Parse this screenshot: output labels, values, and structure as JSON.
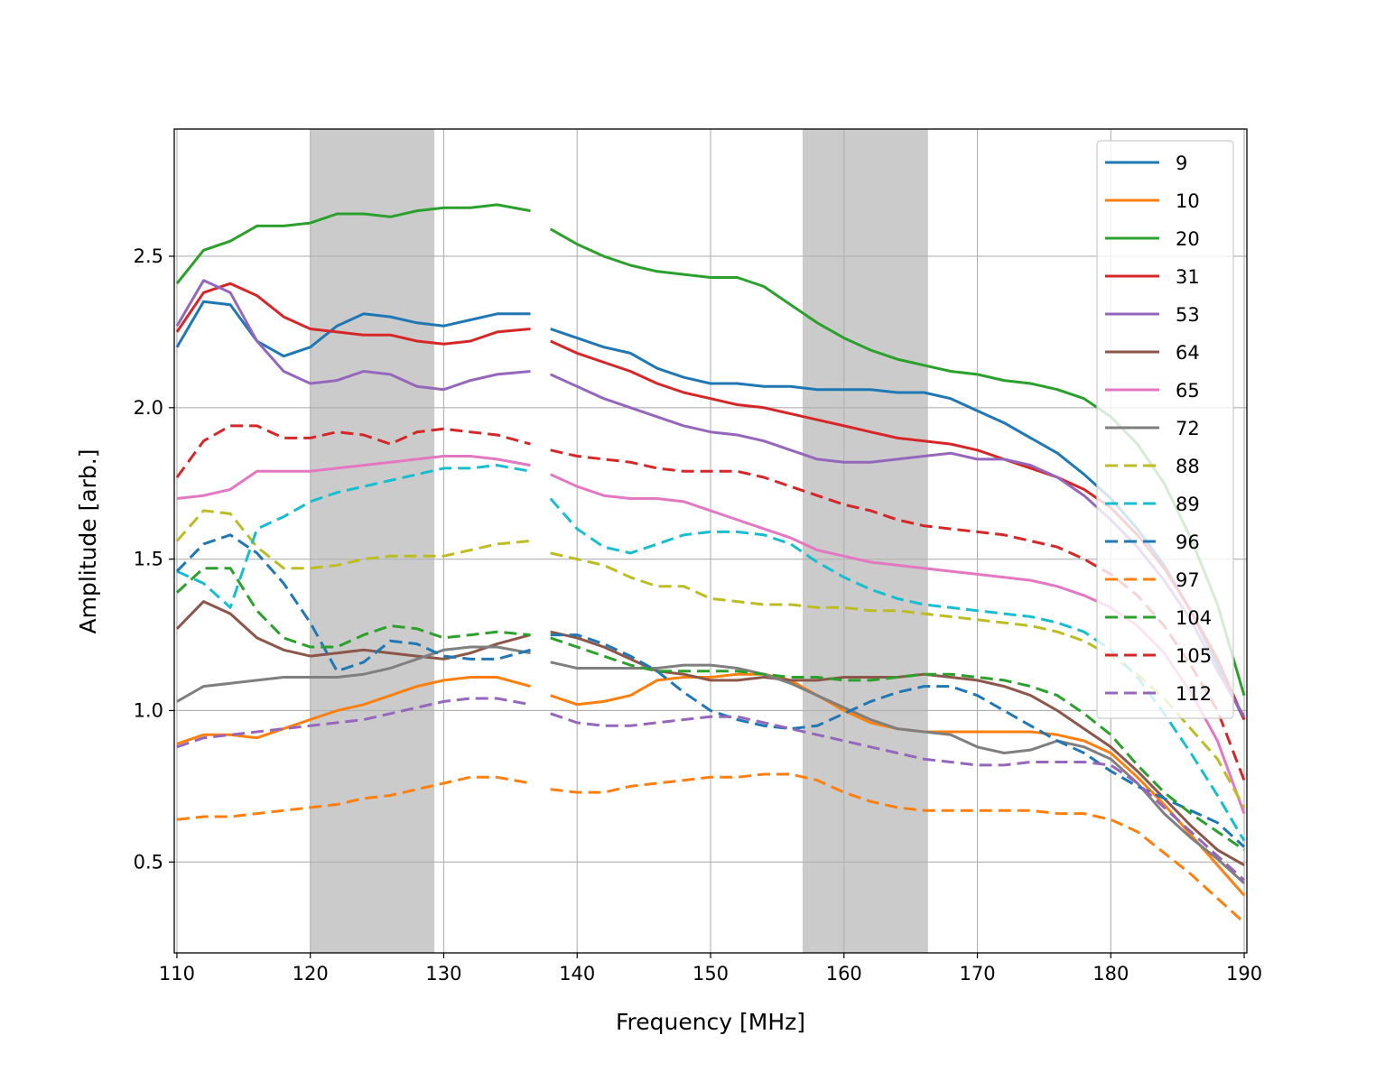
{
  "chart_data": {
    "type": "line",
    "title": "",
    "xlabel": "Frequency [MHz]",
    "ylabel": "Amplitude [arb.]",
    "xlim": [
      109.8,
      190.2
    ],
    "ylim": [
      0.2,
      2.92
    ],
    "xticks": [
      110,
      120,
      130,
      140,
      150,
      160,
      170,
      180,
      190
    ],
    "yticks": [
      0.5,
      1.0,
      1.5,
      2.0,
      2.5
    ],
    "xtick_labels": [
      "110",
      "120",
      "130",
      "140",
      "150",
      "160",
      "170",
      "180",
      "190"
    ],
    "ytick_labels": [
      "0.5",
      "1.0",
      "1.5",
      "2.0",
      "2.5"
    ],
    "grid": true,
    "legend_position": "top-right",
    "shaded_bands": [
      [
        120.0,
        129.3
      ],
      [
        156.9,
        166.3
      ]
    ],
    "gap": [
      136.6,
      137.9
    ],
    "x": [
      110,
      112,
      114,
      116,
      118,
      120,
      122,
      124,
      126,
      128,
      130,
      132,
      134,
      136.5,
      138,
      140,
      142,
      144,
      146,
      148,
      150,
      152,
      154,
      156,
      158,
      160,
      162,
      164,
      166,
      168,
      170,
      172,
      174,
      176,
      178,
      180,
      182,
      184,
      186,
      188,
      190
    ],
    "series": [
      {
        "name": "9",
        "style": "solid",
        "color": "#1f77b4",
        "values": [
          2.2,
          2.35,
          2.34,
          2.22,
          2.17,
          2.2,
          2.27,
          2.31,
          2.3,
          2.28,
          2.27,
          2.29,
          2.31,
          2.31,
          2.26,
          2.23,
          2.2,
          2.18,
          2.13,
          2.1,
          2.08,
          2.08,
          2.07,
          2.07,
          2.06,
          2.06,
          2.06,
          2.05,
          2.05,
          2.03,
          1.99,
          1.95,
          1.9,
          1.85,
          1.78,
          1.7,
          1.6,
          1.48,
          1.33,
          1.15,
          0.97
        ]
      },
      {
        "name": "10",
        "style": "solid",
        "color": "#ff7f0e",
        "values": [
          0.89,
          0.92,
          0.92,
          0.91,
          0.94,
          0.97,
          1.0,
          1.02,
          1.05,
          1.08,
          1.1,
          1.11,
          1.11,
          1.08,
          1.05,
          1.02,
          1.03,
          1.05,
          1.1,
          1.11,
          1.11,
          1.12,
          1.12,
          1.1,
          1.05,
          1.0,
          0.96,
          0.94,
          0.93,
          0.93,
          0.93,
          0.93,
          0.93,
          0.92,
          0.9,
          0.86,
          0.78,
          0.69,
          0.59,
          0.49,
          0.39
        ]
      },
      {
        "name": "20",
        "style": "solid",
        "color": "#2ca02c",
        "values": [
          2.41,
          2.52,
          2.55,
          2.6,
          2.6,
          2.61,
          2.64,
          2.64,
          2.63,
          2.65,
          2.66,
          2.66,
          2.67,
          2.65,
          2.59,
          2.54,
          2.5,
          2.47,
          2.45,
          2.44,
          2.43,
          2.43,
          2.4,
          2.34,
          2.28,
          2.23,
          2.19,
          2.16,
          2.14,
          2.12,
          2.11,
          2.09,
          2.08,
          2.06,
          2.03,
          1.97,
          1.88,
          1.75,
          1.57,
          1.35,
          1.05
        ]
      },
      {
        "name": "31",
        "style": "solid",
        "color": "#d62728",
        "values": [
          2.25,
          2.38,
          2.41,
          2.37,
          2.3,
          2.26,
          2.25,
          2.24,
          2.24,
          2.22,
          2.21,
          2.22,
          2.25,
          2.26,
          2.22,
          2.18,
          2.15,
          2.12,
          2.08,
          2.05,
          2.03,
          2.01,
          2.0,
          1.98,
          1.96,
          1.94,
          1.92,
          1.9,
          1.89,
          1.88,
          1.86,
          1.83,
          1.8,
          1.77,
          1.73,
          1.67,
          1.58,
          1.47,
          1.33,
          1.17,
          0.97
        ]
      },
      {
        "name": "53",
        "style": "solid",
        "color": "#9467bd",
        "values": [
          2.27,
          2.42,
          2.38,
          2.22,
          2.12,
          2.08,
          2.09,
          2.12,
          2.11,
          2.07,
          2.06,
          2.09,
          2.11,
          2.12,
          2.11,
          2.07,
          2.03,
          2.0,
          1.97,
          1.94,
          1.92,
          1.91,
          1.89,
          1.86,
          1.83,
          1.82,
          1.82,
          1.83,
          1.84,
          1.85,
          1.83,
          1.83,
          1.81,
          1.77,
          1.71,
          1.63,
          1.54,
          1.43,
          1.3,
          1.13,
          0.98
        ]
      },
      {
        "name": "64",
        "style": "solid",
        "color": "#8c564b",
        "values": [
          1.27,
          1.36,
          1.32,
          1.24,
          1.2,
          1.18,
          1.19,
          1.2,
          1.19,
          1.18,
          1.17,
          1.19,
          1.22,
          1.25,
          1.26,
          1.24,
          1.21,
          1.17,
          1.13,
          1.12,
          1.1,
          1.1,
          1.11,
          1.1,
          1.1,
          1.11,
          1.11,
          1.11,
          1.12,
          1.11,
          1.1,
          1.08,
          1.05,
          1.0,
          0.94,
          0.88,
          0.8,
          0.71,
          0.62,
          0.54,
          0.49
        ]
      },
      {
        "name": "65",
        "style": "solid",
        "color": "#e377c2",
        "values": [
          1.7,
          1.71,
          1.73,
          1.79,
          1.79,
          1.79,
          1.8,
          1.81,
          1.82,
          1.83,
          1.84,
          1.84,
          1.83,
          1.81,
          1.78,
          1.74,
          1.71,
          1.7,
          1.7,
          1.69,
          1.66,
          1.63,
          1.6,
          1.57,
          1.53,
          1.51,
          1.49,
          1.48,
          1.47,
          1.46,
          1.45,
          1.44,
          1.43,
          1.41,
          1.38,
          1.34,
          1.28,
          1.19,
          1.06,
          0.9,
          0.66
        ]
      },
      {
        "name": "72",
        "style": "solid",
        "color": "#7f7f7f",
        "values": [
          1.03,
          1.08,
          1.09,
          1.1,
          1.11,
          1.11,
          1.11,
          1.12,
          1.14,
          1.17,
          1.2,
          1.21,
          1.21,
          1.19,
          1.16,
          1.14,
          1.14,
          1.14,
          1.14,
          1.15,
          1.15,
          1.14,
          1.12,
          1.09,
          1.05,
          1.01,
          0.97,
          0.94,
          0.93,
          0.92,
          0.88,
          0.86,
          0.87,
          0.9,
          0.88,
          0.84,
          0.76,
          0.66,
          0.58,
          0.51,
          0.43
        ]
      },
      {
        "name": "88",
        "style": "dashed",
        "color": "#bcbd22",
        "values": [
          1.56,
          1.66,
          1.65,
          1.54,
          1.47,
          1.47,
          1.48,
          1.5,
          1.51,
          1.51,
          1.51,
          1.53,
          1.55,
          1.56,
          1.52,
          1.5,
          1.48,
          1.44,
          1.41,
          1.41,
          1.37,
          1.36,
          1.35,
          1.35,
          1.34,
          1.34,
          1.33,
          1.33,
          1.32,
          1.31,
          1.3,
          1.29,
          1.28,
          1.26,
          1.23,
          1.18,
          1.12,
          1.04,
          0.94,
          0.84,
          0.68
        ]
      },
      {
        "name": "89",
        "style": "dashed",
        "color": "#17becf",
        "values": [
          1.46,
          1.42,
          1.34,
          1.6,
          1.64,
          1.69,
          1.72,
          1.74,
          1.76,
          1.78,
          1.8,
          1.8,
          1.81,
          1.79,
          1.7,
          1.6,
          1.54,
          1.52,
          1.55,
          1.58,
          1.59,
          1.59,
          1.58,
          1.55,
          1.49,
          1.44,
          1.4,
          1.37,
          1.35,
          1.34,
          1.33,
          1.32,
          1.31,
          1.29,
          1.26,
          1.2,
          1.11,
          0.99,
          0.86,
          0.72,
          0.57
        ]
      },
      {
        "name": "96",
        "style": "dashed",
        "color": "#1f77b4",
        "values": [
          1.46,
          1.55,
          1.58,
          1.52,
          1.42,
          1.29,
          1.13,
          1.16,
          1.23,
          1.22,
          1.18,
          1.17,
          1.17,
          1.2,
          1.25,
          1.25,
          1.22,
          1.18,
          1.13,
          1.06,
          1.0,
          0.97,
          0.95,
          0.94,
          0.95,
          0.99,
          1.03,
          1.06,
          1.08,
          1.08,
          1.05,
          1.0,
          0.95,
          0.9,
          0.86,
          0.8,
          0.75,
          0.71,
          0.67,
          0.63,
          0.55
        ]
      },
      {
        "name": "97",
        "style": "dashed",
        "color": "#ff7f0e",
        "values": [
          0.64,
          0.65,
          0.65,
          0.66,
          0.67,
          0.68,
          0.69,
          0.71,
          0.72,
          0.74,
          0.76,
          0.78,
          0.78,
          0.76,
          0.74,
          0.73,
          0.73,
          0.75,
          0.76,
          0.77,
          0.78,
          0.78,
          0.79,
          0.79,
          0.77,
          0.73,
          0.7,
          0.68,
          0.67,
          0.67,
          0.67,
          0.67,
          0.67,
          0.66,
          0.66,
          0.64,
          0.6,
          0.53,
          0.46,
          0.38,
          0.3
        ]
      },
      {
        "name": "104",
        "style": "dashed",
        "color": "#2ca02c",
        "values": [
          1.39,
          1.47,
          1.47,
          1.33,
          1.24,
          1.21,
          1.21,
          1.25,
          1.28,
          1.27,
          1.24,
          1.25,
          1.26,
          1.25,
          1.24,
          1.21,
          1.18,
          1.15,
          1.13,
          1.13,
          1.13,
          1.13,
          1.12,
          1.11,
          1.11,
          1.1,
          1.1,
          1.11,
          1.12,
          1.12,
          1.11,
          1.1,
          1.08,
          1.05,
          0.99,
          0.92,
          0.82,
          0.73,
          0.66,
          0.6,
          0.54
        ]
      },
      {
        "name": "105",
        "style": "dashed",
        "color": "#d62728",
        "values": [
          1.77,
          1.89,
          1.94,
          1.94,
          1.9,
          1.9,
          1.92,
          1.91,
          1.88,
          1.92,
          1.93,
          1.92,
          1.91,
          1.88,
          1.86,
          1.84,
          1.83,
          1.82,
          1.8,
          1.79,
          1.79,
          1.79,
          1.77,
          1.74,
          1.71,
          1.68,
          1.66,
          1.63,
          1.61,
          1.6,
          1.59,
          1.58,
          1.56,
          1.54,
          1.5,
          1.45,
          1.38,
          1.28,
          1.15,
          1.0,
          0.77
        ]
      },
      {
        "name": "112",
        "style": "dashed",
        "color": "#9467bd",
        "values": [
          0.88,
          0.91,
          0.92,
          0.93,
          0.94,
          0.95,
          0.96,
          0.97,
          0.99,
          1.01,
          1.03,
          1.04,
          1.04,
          1.02,
          0.99,
          0.96,
          0.95,
          0.95,
          0.96,
          0.97,
          0.98,
          0.98,
          0.96,
          0.94,
          0.92,
          0.9,
          0.88,
          0.86,
          0.84,
          0.83,
          0.82,
          0.82,
          0.83,
          0.83,
          0.83,
          0.82,
          0.76,
          0.68,
          0.6,
          0.52,
          0.44
        ]
      }
    ]
  }
}
